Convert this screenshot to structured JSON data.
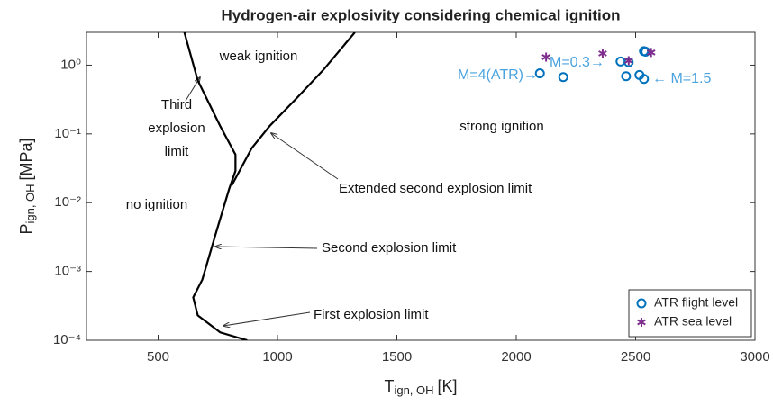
{
  "chart_data": {
    "type": "line",
    "title": "Hydrogen-air explosivity considering chemical ignition",
    "xlabel": {
      "main": "T",
      "sub": "ign, OH",
      "unit": "[K]"
    },
    "ylabel": {
      "main": "P",
      "sub": "ign, OH",
      "unit": "[MPa]"
    },
    "xlim": [
      200,
      3000
    ],
    "xticks": [
      500,
      1000,
      1500,
      2000,
      2500,
      3000
    ],
    "ylim": [
      0.0001,
      3
    ],
    "yscale": "log",
    "yticks": [
      {
        "value": 0.0001,
        "label": "10⁻⁴"
      },
      {
        "value": 0.001,
        "label": "10⁻³"
      },
      {
        "value": 0.01,
        "label": "10⁻²"
      },
      {
        "value": 0.1,
        "label": "10⁻¹"
      },
      {
        "value": 1,
        "label": "10⁰"
      }
    ],
    "curves": [
      {
        "color": "#000000",
        "x": [
          610,
          666,
          760,
          824,
          824,
          798,
          741,
          685,
          647,
          666,
          760,
          873
        ],
        "y": [
          3,
          0.6,
          0.13,
          0.05,
          0.029,
          0.016,
          0.0035,
          0.00076,
          0.00042,
          0.00023,
          0.00013,
          0.0001
        ]
      },
      {
        "color": "#000000",
        "x": [
          809,
          892,
          967,
          1080,
          1193,
          1324
        ],
        "y": [
          0.018,
          0.062,
          0.13,
          0.33,
          0.86,
          3
        ]
      }
    ],
    "series": [
      {
        "name": "ATR flight level",
        "color": "#0072bd",
        "marker": "circle",
        "x": [
          2099,
          2197,
          2437,
          2460,
          2471,
          2516,
          2535,
          2535,
          2542
        ],
        "y": [
          0.76,
          0.67,
          1.13,
          0.69,
          1.1,
          0.72,
          0.63,
          1.6,
          1.57
        ]
      },
      {
        "name": "ATR sea level",
        "color": "#7e2f8e",
        "marker": "star",
        "x": [
          2125,
          2362,
          2471,
          2565
        ],
        "y": [
          1.31,
          1.48,
          1.16,
          1.53
        ]
      }
    ],
    "annotations": [
      "weak ignition",
      "Third",
      "explosion",
      "limit",
      "strong ignition",
      "no ignition",
      "Extended second explosion limit",
      "Second explosion limit",
      "First explosion limit",
      "M=4(ATR)→",
      "M=0.3→",
      "← M=1.5"
    ],
    "legend": "lower right"
  }
}
